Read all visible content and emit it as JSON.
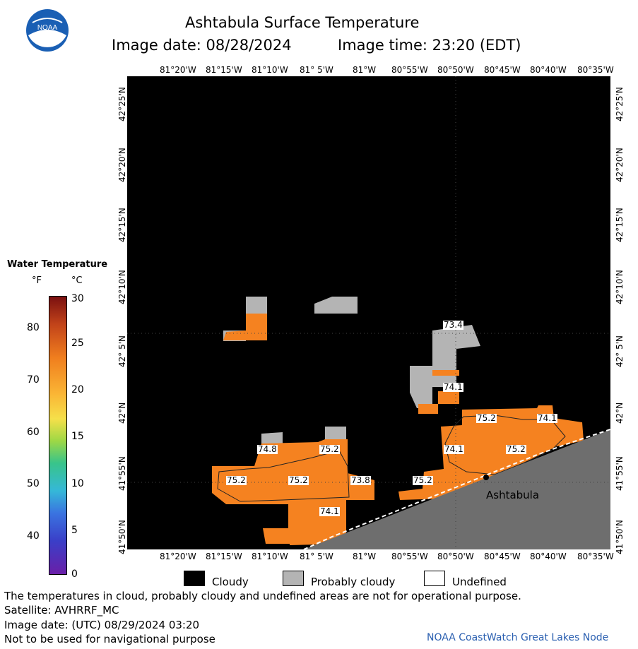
{
  "header": {
    "title": "Ashtabula Surface Temperature",
    "image_date": "Image date: 08/28/2024",
    "image_time": "Image time: 23:20 (EDT)"
  },
  "logo": {
    "text": "NOAA",
    "icon": "noaa-logo"
  },
  "map": {
    "top_lon_labels": [
      "81°20'W",
      "81°15'W",
      "81°10'W",
      "81° 5'W",
      "81°W",
      "80°55'W",
      "80°50'W",
      "80°45'W",
      "80°40'W",
      "80°35'W"
    ],
    "bottom_lon_labels": [
      "81°20'W",
      "81°15'W",
      "81°10'W",
      "81° 5'W",
      "81°W",
      "80°55'W",
      "80°50'W",
      "80°45'W",
      "80°40'W",
      "80°35'W"
    ],
    "lat_labels": [
      "42°25'N",
      "42°20'N",
      "42°15'N",
      "42°10'N",
      "42° 5'N",
      "42°N",
      "41°55'N",
      "41°50'N"
    ],
    "place_label": "Ashtabula",
    "contour_labels": [
      "73.4",
      "74.1",
      "75.2",
      "74.1",
      "74.1",
      "75.2",
      "74.8",
      "75.2",
      "75.2",
      "75.2",
      "73.8",
      "75.2",
      "74.1"
    ]
  },
  "colorbar": {
    "title": "Water Temperature",
    "unit_f": "°F",
    "unit_c": "°C",
    "f_ticks": [
      "80",
      "70",
      "60",
      "50",
      "40"
    ],
    "c_ticks": [
      "30",
      "25",
      "20",
      "15",
      "10",
      "5",
      "0"
    ],
    "colors": [
      "#7a1010",
      "#c2431a",
      "#f07e1e",
      "#fab535",
      "#f6e04a",
      "#9ed845",
      "#38c48a",
      "#35b8d8",
      "#3a74e0",
      "#3a3fc8",
      "#6a1fa8"
    ]
  },
  "legend": {
    "cloudy": "Cloudy",
    "probably_cloudy": "Probably cloudy",
    "undefined": "Undefined",
    "cloudy_color": "#000000",
    "probably_cloudy_color": "#b4b4b4",
    "undefined_color": "#ffffff"
  },
  "footer": {
    "disclaimer": "The temperatures in cloud, probably cloudy and undefined areas are not for operational purpose.",
    "satellite": "Satellite: AVHRRF_MC",
    "utc_date": "Image date: (UTC) 08/29/2024  03:20",
    "nav_warning": "Not to be used for navigational purpose",
    "credit": "NOAA CoastWatch Great Lakes Node"
  },
  "palette": {
    "water": "#f58220",
    "cloud": "#000000",
    "probable": "#b4b4b4",
    "land": "#6e6e6e"
  }
}
